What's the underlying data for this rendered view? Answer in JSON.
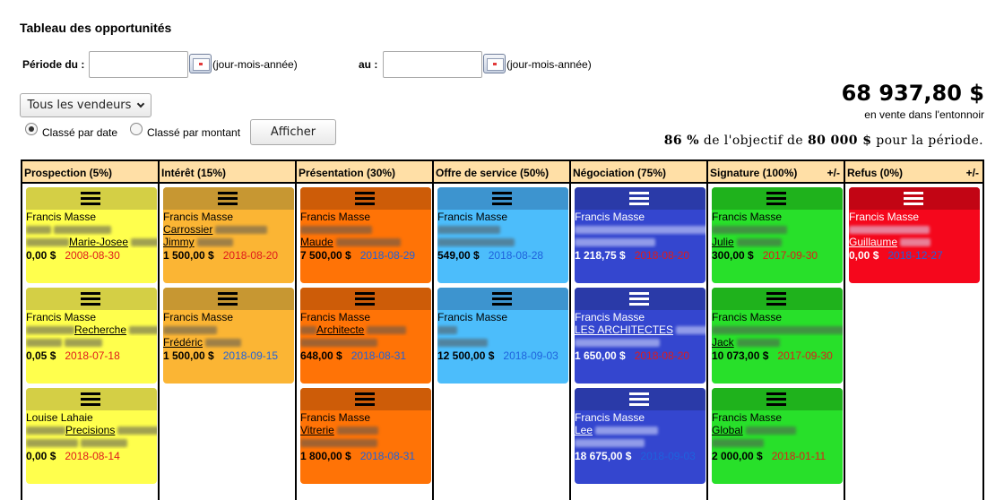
{
  "page": {
    "title": "Tableau des opportunités",
    "period_from_label": "Période du :",
    "period_to_label": "au :",
    "date_from_value": "",
    "date_to_value": "",
    "date_format_hint": "(jour-mois-année)",
    "vendor_dropdown": "Tous les vendeurs",
    "sort_by_date": "Classé par date",
    "sort_by_amount": "Classé par montant",
    "selected_sort": "date",
    "show_button": "Afficher",
    "total": "68 937,80 $",
    "total_caption": "en vente dans l'entonnoir",
    "objective_pct": "86 %",
    "objective_mid": "de l'objectif de",
    "objective_amount": "80 000 $",
    "objective_end": "pour la période."
  },
  "columns": [
    {
      "title": "Prospection (5%)",
      "toggle": "",
      "top": "#d4cf45",
      "body": "#ffff4d",
      "menu": "#000",
      "cards": [
        {
          "name": "Francis Masse",
          "line2": "",
          "line3": "Marie-Josee",
          "amount": "0,00 $",
          "date": "2008-08-30",
          "status": "late"
        },
        {
          "name": "Francis Masse",
          "line2": "Recherche",
          "line3": "",
          "amount": "0,05 $",
          "date": "2018-07-18",
          "status": "late"
        },
        {
          "name": "Louise Lahaie",
          "line2": "Precisions",
          "line3": "",
          "amount": "0,00 $",
          "date": "2018-08-14",
          "status": "late"
        }
      ]
    },
    {
      "title": "Intérêt (15%)",
      "toggle": "",
      "top": "#c79732",
      "body": "#fbb534",
      "menu": "#000",
      "cards": [
        {
          "name": "Francis Masse",
          "line2": "Carrossier",
          "line3": "Jimmy",
          "amount": "1 500,00 $",
          "date": "2018-08-20",
          "status": "late"
        },
        {
          "name": "Francis Masse",
          "line2": "",
          "line3": "Frédéric",
          "amount": "1 500,00 $",
          "date": "2018-09-15",
          "status": "ok"
        }
      ]
    },
    {
      "title": "Présentation (30%)",
      "toggle": "",
      "top": "#cd5c08",
      "body": "#ff7306",
      "menu": "#000",
      "cards": [
        {
          "name": "Francis Masse",
          "line2": "",
          "line3": "Maude",
          "amount": "7 500,00 $",
          "date": "2018-08-29",
          "status": "ok"
        },
        {
          "name": "Francis Masse",
          "line2": "Architecte",
          "line3": "",
          "amount": "648,00 $",
          "date": "2018-08-31",
          "status": "ok"
        },
        {
          "name": "Francis Masse",
          "line2": "Vitrerie",
          "line3": "",
          "amount": "1 800,00 $",
          "date": "2018-08-31",
          "status": "ok"
        }
      ]
    },
    {
      "title": "Offre de service (50%)",
      "toggle": "",
      "top": "#3d94cf",
      "body": "#4cbdfb",
      "menu": "#000",
      "cards": [
        {
          "name": "Francis Masse",
          "line2": "",
          "line3": "",
          "amount": "549,00 $",
          "date": "2018-08-28",
          "status": "ok"
        },
        {
          "name": "Francis Masse",
          "line2": "",
          "line3": "",
          "amount": "12 500,00 $",
          "date": "2018-09-03",
          "status": "ok"
        }
      ]
    },
    {
      "title": "Négociation (75%)",
      "toggle": "",
      "top": "#2a3aa8",
      "body": "#3446cf",
      "menu": "#fff",
      "cards": [
        {
          "name": "Francis Masse",
          "line2": "",
          "line3": "",
          "amount": "1 218,75 $",
          "date": "2018-08-20",
          "status": "late"
        },
        {
          "name": "Francis Masse",
          "line2": "LES ARCHITECTES",
          "line3": "",
          "amount": "1 650,00 $",
          "date": "2018-08-20",
          "status": "late"
        },
        {
          "name": "Francis Masse",
          "line2": "Lee",
          "line3": "",
          "amount": "18 675,00 $",
          "date": "2018-09-03",
          "status": "ok"
        }
      ]
    },
    {
      "title": "Signature (100%)",
      "toggle": "+/-",
      "top": "#1fb21c",
      "body": "#28e02a",
      "menu": "#000",
      "cards": [
        {
          "name": "Francis Masse",
          "line2": "",
          "line3": "Julie",
          "amount": "300,00 $",
          "date": "2017-09-30",
          "status": "late"
        },
        {
          "name": "Francis Masse",
          "line2": "",
          "line3": "Jack",
          "amount": "10 073,00 $",
          "date": "2017-09-30",
          "status": "late"
        },
        {
          "name": "Francis Masse",
          "line2": "Global",
          "line3": "",
          "amount": "2 000,00 $",
          "date": "2018-01-11",
          "status": "late"
        }
      ]
    },
    {
      "title": "Refus (0%)",
      "toggle": "+/-",
      "top": "#c20514",
      "body": "#f5071c",
      "menu": "#fff",
      "cards": [
        {
          "name": "Francis Masse",
          "line2": "",
          "line3": "Guillaume",
          "amount": "0,00 $",
          "date": "2018-12-27",
          "status": "ok"
        }
      ]
    }
  ]
}
